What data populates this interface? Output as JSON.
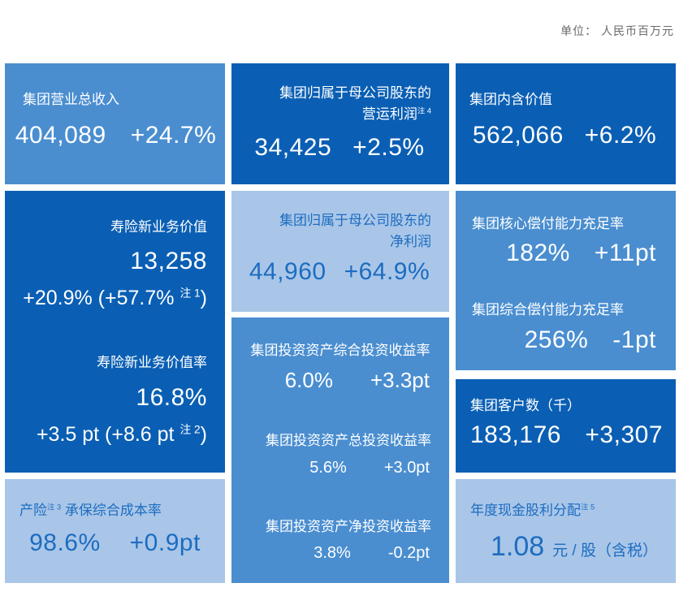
{
  "header": {
    "unit_label": "单位：  人民币百万元"
  },
  "colors": {
    "tile_medium_blue": "#4a8ed0",
    "tile_dark_blue": "#0a5fb4",
    "tile_light_blue": "#a9c6e8",
    "text_on_light": "#1d6cc0",
    "unit_text": "#6a6a6a"
  },
  "tiles": {
    "revenue": {
      "label": "集团营业总收入",
      "value": "404,089",
      "change": "+24.7%"
    },
    "operating_profit": {
      "label_line1": "集团归属于母公司股东的",
      "label_line2": "营运利润",
      "label_sup": "注 4",
      "value": "34,425",
      "change": "+2.5%"
    },
    "embedded_value": {
      "label": "集团内含价值",
      "value": "562,066",
      "change": "+6.2%"
    },
    "nbv": {
      "label": "寿险新业务价值",
      "value": "13,258",
      "change_main": "+20.9% (+57.7% ",
      "change_sup": "注 1",
      "change_close": ")"
    },
    "nbv_margin": {
      "label": "寿险新业务价值率",
      "value": "16.8%",
      "change_main": "+3.5 pt (+8.6 pt ",
      "change_sup": "注 2",
      "change_close": ")"
    },
    "net_profit": {
      "label_line1": "集团归属于母公司股东的",
      "label_line2": "净利润",
      "value": "44,960",
      "change": "+64.9%"
    },
    "investment": {
      "comprehensive": {
        "label": "集团投资资产综合投资收益率",
        "value": "6.0%",
        "change": "+3.3pt"
      },
      "total": {
        "label": "集团投资资产总投资收益率",
        "value": "5.6%",
        "change": "+3.0pt"
      },
      "net": {
        "label": "集团投资资产净投资收益率",
        "value": "3.8%",
        "change": "-0.2pt"
      }
    },
    "core_solvency": {
      "label": "集团核心偿付能力充足率",
      "value": "182%",
      "change": "+11pt"
    },
    "comprehensive_solvency": {
      "label": "集团综合偿付能力充足率",
      "value": "256%",
      "change": "-1pt"
    },
    "customers": {
      "label": "集团客户数（千）",
      "value": "183,176",
      "change": "+3,307"
    },
    "combined_ratio": {
      "label_prefix": "产险",
      "label_sup": "注 3",
      "label_suffix": " 承保综合成本率",
      "value": "98.6%",
      "change": "+0.9pt"
    },
    "dividend": {
      "label": "年度现金股利分配",
      "label_sup": "注 5",
      "value": "1.08",
      "unit": "元 / 股（含税）"
    }
  },
  "chart_data": {
    "type": "table",
    "title": "",
    "unit": "人民币百万元",
    "columns": [
      "metric",
      "value",
      "change"
    ],
    "rows": [
      [
        "集团营业总收入",
        "404,089",
        "+24.7%"
      ],
      [
        "集团归属于母公司股东的营运利润 (注4)",
        "34,425",
        "+2.5%"
      ],
      [
        "集团内含价值",
        "562,066",
        "+6.2%"
      ],
      [
        "寿险新业务价值",
        "13,258",
        "+20.9% (+57.7% 注1)"
      ],
      [
        "寿险新业务价值率",
        "16.8%",
        "+3.5 pt (+8.6 pt 注2)"
      ],
      [
        "集团归属于母公司股东的净利润",
        "44,960",
        "+64.9%"
      ],
      [
        "集团投资资产综合投资收益率",
        "6.0%",
        "+3.3pt"
      ],
      [
        "集团投资资产总投资收益率",
        "5.6%",
        "+3.0pt"
      ],
      [
        "集团投资资产净投资收益率",
        "3.8%",
        "-0.2pt"
      ],
      [
        "集团核心偿付能力充足率",
        "182%",
        "+11pt"
      ],
      [
        "集团综合偿付能力充足率",
        "256%",
        "-1pt"
      ],
      [
        "集团客户数（千）",
        "183,176",
        "+3,307"
      ],
      [
        "产险 (注3) 承保综合成本率",
        "98.6%",
        "+0.9pt"
      ],
      [
        "年度现金股利分配 (注5)",
        "1.08 元/股（含税）",
        ""
      ]
    ]
  }
}
